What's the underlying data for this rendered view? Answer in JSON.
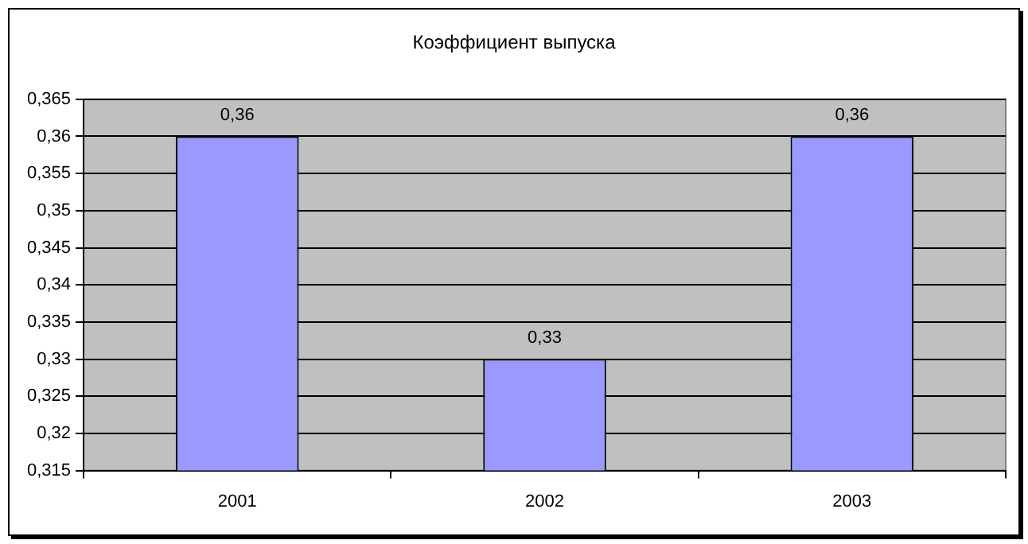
{
  "chart_data": {
    "type": "bar",
    "title": "Коэффициент выпуска",
    "categories": [
      "2001",
      "2002",
      "2003"
    ],
    "values": [
      0.36,
      0.33,
      0.36
    ],
    "value_labels": [
      "0,36",
      "0,33",
      "0,36"
    ],
    "color": "#9999ff",
    "ylim": [
      0.315,
      0.365
    ],
    "yticks": [
      {
        "value": 0.315,
        "label": "0,315"
      },
      {
        "value": 0.32,
        "label": "0,32"
      },
      {
        "value": 0.325,
        "label": "0,325"
      },
      {
        "value": 0.33,
        "label": "0,33"
      },
      {
        "value": 0.335,
        "label": "0,335"
      },
      {
        "value": 0.34,
        "label": "0,34"
      },
      {
        "value": 0.345,
        "label": "0,345"
      },
      {
        "value": 0.35,
        "label": "0,35"
      },
      {
        "value": 0.355,
        "label": "0,355"
      },
      {
        "value": 0.36,
        "label": "0,36"
      },
      {
        "value": 0.365,
        "label": "0,365"
      }
    ],
    "grid": "y",
    "legend": false
  }
}
